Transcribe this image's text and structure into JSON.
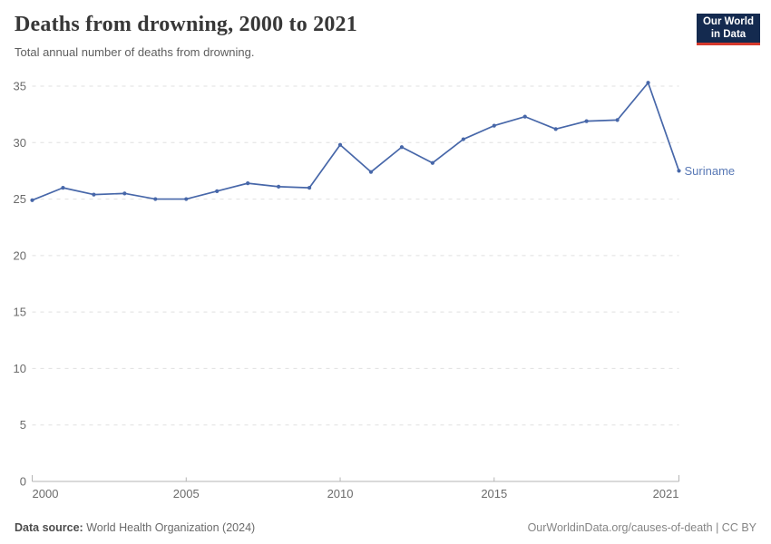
{
  "header": {
    "title": "Deaths from drowning, 2000 to 2021",
    "subtitle": "Total annual number of deaths from drowning."
  },
  "logo": {
    "line1": "Our World",
    "line2": "in Data",
    "bg_color": "#142A4F",
    "accent_color": "#D5392C"
  },
  "chart_data": {
    "type": "line",
    "title": "Deaths from drowning, 2000 to 2021",
    "xlabel": "",
    "ylabel": "",
    "x": [
      2000,
      2001,
      2002,
      2003,
      2004,
      2005,
      2006,
      2007,
      2008,
      2009,
      2010,
      2011,
      2012,
      2013,
      2014,
      2015,
      2016,
      2017,
      2018,
      2019,
      2020,
      2021
    ],
    "series": [
      {
        "name": "Suriname",
        "values": [
          24.9,
          26.0,
          25.4,
          25.5,
          25.0,
          25.0,
          25.7,
          26.4,
          26.1,
          26.0,
          29.8,
          27.4,
          29.6,
          28.2,
          30.3,
          31.5,
          32.3,
          31.2,
          31.9,
          32.0,
          35.3,
          27.5
        ]
      }
    ],
    "xlim": [
      2000,
      2021
    ],
    "ylim": [
      0,
      35
    ],
    "yticks": [
      0,
      5,
      10,
      15,
      20,
      25,
      30,
      35
    ],
    "xticks": [
      2000,
      2005,
      2010,
      2015,
      2021
    ],
    "grid": "horizontal-dashed",
    "legend_position": "end-of-line-label",
    "line_color": "#4767A9",
    "entity_label_color": "#5878B5",
    "gridline_color": "#e0e0e0",
    "axis_color": "#b5b5b5",
    "tick_label_color": "#6b6b6b"
  },
  "footer": {
    "source_label": "Data source:",
    "source_value": "World Health Organization (2024)",
    "license": "OurWorldinData.org/causes-of-death | CC BY"
  }
}
